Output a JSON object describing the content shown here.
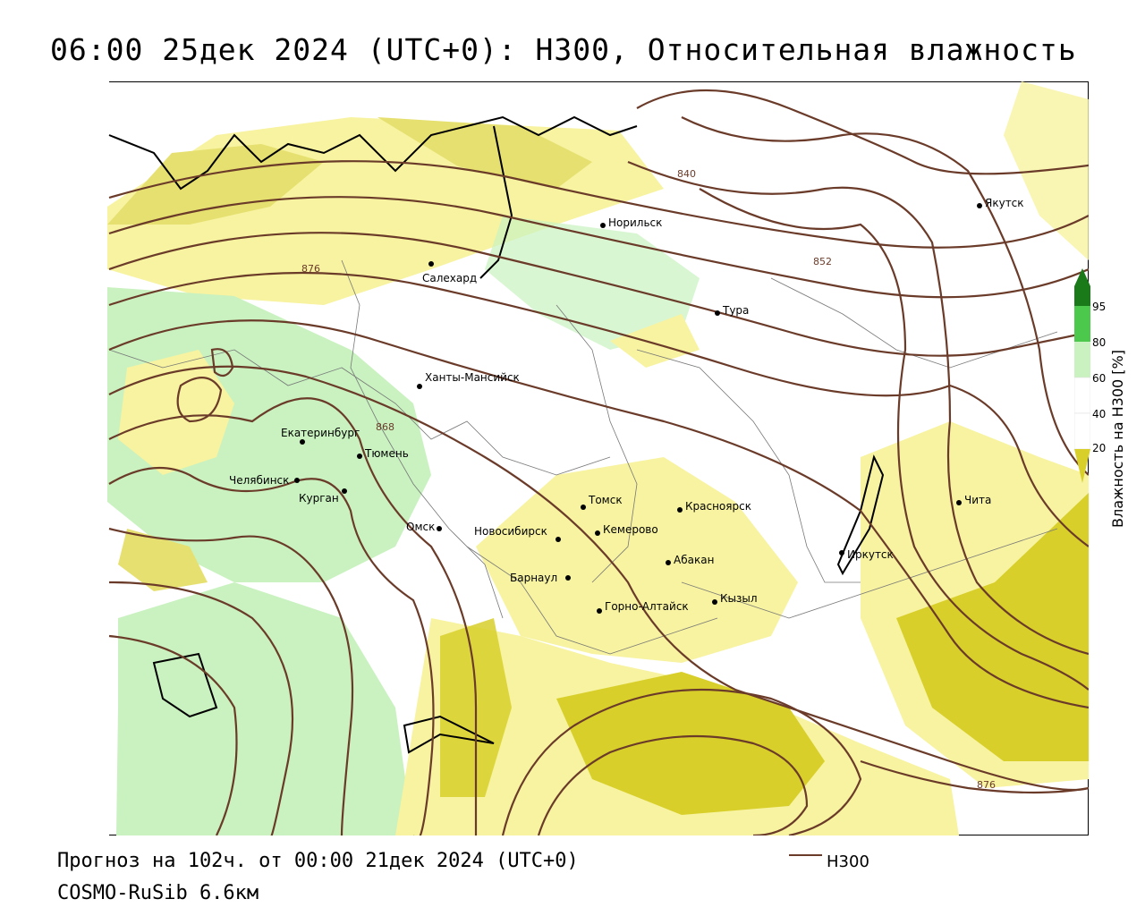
{
  "title": "06:00 25дек 2024 (UTC+0): H300, Относительная влажность",
  "footer": {
    "forecast": "Прогноз на 102ч. от 00:00 21дек 2024 (UTC+0)",
    "model": "COSMO-RuSib 6.6км"
  },
  "legend": {
    "line_label": "H300",
    "line_color": "#6b3b2a"
  },
  "colorbar": {
    "title": "Влажность на H300 [%]",
    "ticks": [
      "95",
      "80",
      "60",
      "40",
      "20"
    ],
    "colors": {
      "lt20": "#d8cf2a",
      "20_40": "#ffffff",
      "40_60": "#ffffff",
      "50_60": "#f7f3a0",
      "60_80": "#c9f2c0",
      "80_95": "#4cc84c",
      "gt95": "#1a7a1a"
    }
  },
  "cities": [
    {
      "name": "Норильск"
    },
    {
      "name": "Якутск"
    },
    {
      "name": "Салехард"
    },
    {
      "name": "Тура"
    },
    {
      "name": "Ханты-Мансийск"
    },
    {
      "name": "Екатеринбург"
    },
    {
      "name": "Тюмень"
    },
    {
      "name": "Челябинск"
    },
    {
      "name": "Курган"
    },
    {
      "name": "Омск"
    },
    {
      "name": "Новосибирск"
    },
    {
      "name": "Томск"
    },
    {
      "name": "Кемерово"
    },
    {
      "name": "Красноярск"
    },
    {
      "name": "Барнаул"
    },
    {
      "name": "Абакан"
    },
    {
      "name": "Кызыл"
    },
    {
      "name": "Горно-Алтайск"
    },
    {
      "name": "Иркутск"
    },
    {
      "name": "Чита"
    }
  ],
  "isolines": [
    "840",
    "852",
    "876",
    "868",
    "876"
  ]
}
